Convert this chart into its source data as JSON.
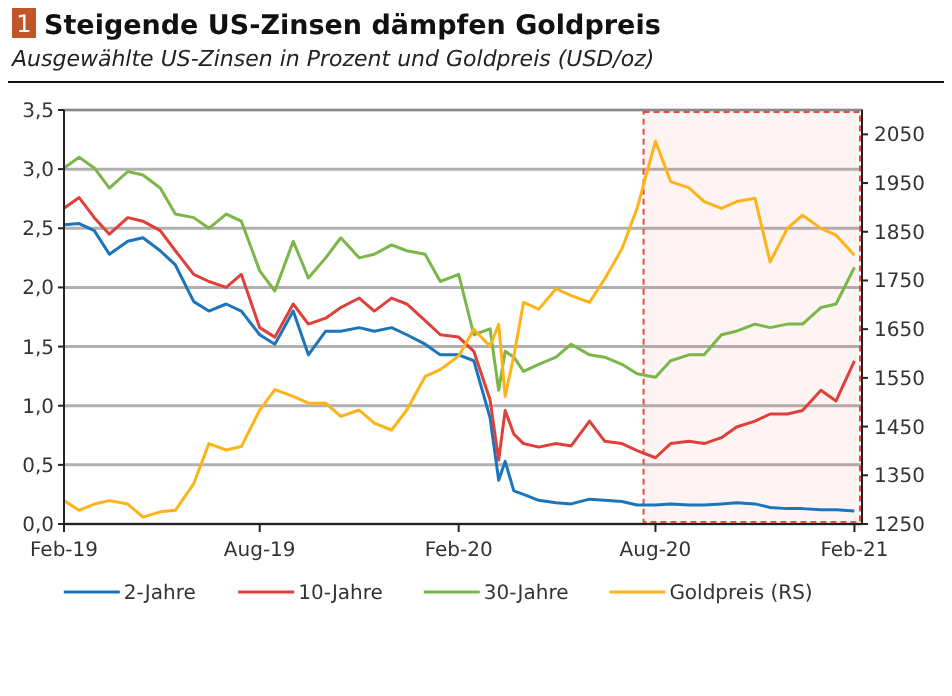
{
  "chart_data": {
    "type": "line",
    "title": "Steigende US-Zinsen dämpfen Goldpreis",
    "subtitle": "Ausgewählte US-Zinsen in Prozent und Goldpreis (USD/oz)",
    "annotations": [
      "1"
    ],
    "x": [
      "2019-02-01",
      "2019-02-15",
      "2019-03-01",
      "2019-03-15",
      "2019-04-01",
      "2019-04-15",
      "2019-05-01",
      "2019-05-15",
      "2019-06-01",
      "2019-06-15",
      "2019-07-01",
      "2019-07-15",
      "2019-08-01",
      "2019-08-15",
      "2019-09-01",
      "2019-09-15",
      "2019-10-01",
      "2019-10-15",
      "2019-11-01",
      "2019-11-15",
      "2019-12-01",
      "2019-12-15",
      "2020-01-01",
      "2020-01-15",
      "2020-02-01",
      "2020-02-15",
      "2020-03-01",
      "2020-03-09",
      "2020-03-15",
      "2020-03-23",
      "2020-04-01",
      "2020-04-15",
      "2020-05-01",
      "2020-05-15",
      "2020-06-01",
      "2020-06-15",
      "2020-07-01",
      "2020-07-15",
      "2020-08-01",
      "2020-08-15",
      "2020-09-01",
      "2020-09-15",
      "2020-10-01",
      "2020-10-15",
      "2020-11-01",
      "2020-11-15",
      "2020-12-01",
      "2020-12-15",
      "2021-01-01",
      "2021-01-15",
      "2021-02-01"
    ],
    "series": [
      {
        "name": "2-Jahre",
        "color": "#1a75bc",
        "values": [
          2.53,
          2.54,
          2.48,
          2.28,
          2.39,
          2.42,
          2.31,
          2.19,
          1.88,
          1.8,
          1.86,
          1.8,
          1.6,
          1.52,
          1.8,
          1.43,
          1.63,
          1.63,
          1.66,
          1.63,
          1.66,
          1.6,
          1.52,
          1.43,
          1.43,
          1.38,
          0.9,
          0.37,
          0.53,
          0.28,
          0.25,
          0.2,
          0.18,
          0.17,
          0.21,
          0.2,
          0.19,
          0.16,
          0.16,
          0.17,
          0.16,
          0.16,
          0.17,
          0.18,
          0.17,
          0.14,
          0.13,
          0.13,
          0.12,
          0.12,
          0.11
        ]
      },
      {
        "name": "10-Jahre",
        "color": "#e0403a",
        "values": [
          2.67,
          2.76,
          2.59,
          2.45,
          2.59,
          2.56,
          2.48,
          2.31,
          2.11,
          2.05,
          2.0,
          2.11,
          1.66,
          1.58,
          1.86,
          1.69,
          1.74,
          1.83,
          1.91,
          1.8,
          1.91,
          1.86,
          1.72,
          1.6,
          1.58,
          1.46,
          1.05,
          0.54,
          0.96,
          0.76,
          0.68,
          0.65,
          0.68,
          0.66,
          0.87,
          0.7,
          0.68,
          0.62,
          0.56,
          0.68,
          0.7,
          0.68,
          0.73,
          0.82,
          0.87,
          0.93,
          0.93,
          0.96,
          1.13,
          1.04,
          1.38
        ]
      },
      {
        "name": "30-Jahre",
        "color": "#7ab648",
        "values": [
          3.01,
          3.1,
          3.01,
          2.84,
          2.98,
          2.95,
          2.84,
          2.62,
          2.59,
          2.5,
          2.62,
          2.56,
          2.14,
          1.97,
          2.39,
          2.08,
          2.25,
          2.42,
          2.25,
          2.28,
          2.36,
          2.31,
          2.28,
          2.05,
          2.11,
          1.6,
          1.65,
          1.13,
          1.46,
          1.41,
          1.29,
          1.35,
          1.41,
          1.52,
          1.43,
          1.41,
          1.35,
          1.27,
          1.24,
          1.38,
          1.43,
          1.43,
          1.6,
          1.63,
          1.69,
          1.66,
          1.69,
          1.69,
          1.83,
          1.86,
          2.17
        ]
      },
      {
        "name": "Goldpreis (RS)",
        "color": "#ffb31a",
        "axis": "y2",
        "values": [
          1298,
          1278,
          1291,
          1298,
          1291,
          1264,
          1275,
          1278,
          1333,
          1415,
          1402,
          1409,
          1484,
          1526,
          1512,
          1498,
          1498,
          1471,
          1484,
          1457,
          1443,
          1484,
          1553,
          1567,
          1595,
          1650,
          1615,
          1660,
          1512,
          1595,
          1705,
          1691,
          1733,
          1719,
          1705,
          1753,
          1815,
          1898,
          2036,
          1953,
          1940,
          1912,
          1898,
          1912,
          1919,
          1788,
          1857,
          1884,
          1857,
          1843,
          1802
        ]
      }
    ],
    "xlim": [
      "2019-02-01",
      "2021-02-08"
    ],
    "xticks": [
      {
        "value": "2019-02-01",
        "label": "Feb-19"
      },
      {
        "value": "2019-08-01",
        "label": "Aug-19"
      },
      {
        "value": "2020-02-01",
        "label": "Feb-20"
      },
      {
        "value": "2020-08-01",
        "label": "Aug-20"
      },
      {
        "value": "2021-02-01",
        "label": "Feb-21"
      }
    ],
    "ylim": [
      0,
      3.5
    ],
    "yticks": [
      {
        "value": 0,
        "label": "0,0"
      },
      {
        "value": 0.5,
        "label": "0,5"
      },
      {
        "value": 1,
        "label": "1,0"
      },
      {
        "value": 1.5,
        "label": "1,5"
      },
      {
        "value": 2,
        "label": "2,0"
      },
      {
        "value": 2.5,
        "label": "2,5"
      },
      {
        "value": 3,
        "label": "3,0"
      },
      {
        "value": 3.5,
        "label": "3,5"
      }
    ],
    "y2lim": [
      1250,
      2100
    ],
    "y2ticks": [
      1250,
      1350,
      1450,
      1550,
      1650,
      1750,
      1850,
      1950,
      2050
    ],
    "bands": [
      {
        "axis": "x",
        "from": "2020-07-21",
        "to": "2021-02-08",
        "color": "#e84c3d"
      }
    ],
    "grid": "y",
    "legend": "bottom",
    "marker": "none",
    "line_style": "solid"
  }
}
